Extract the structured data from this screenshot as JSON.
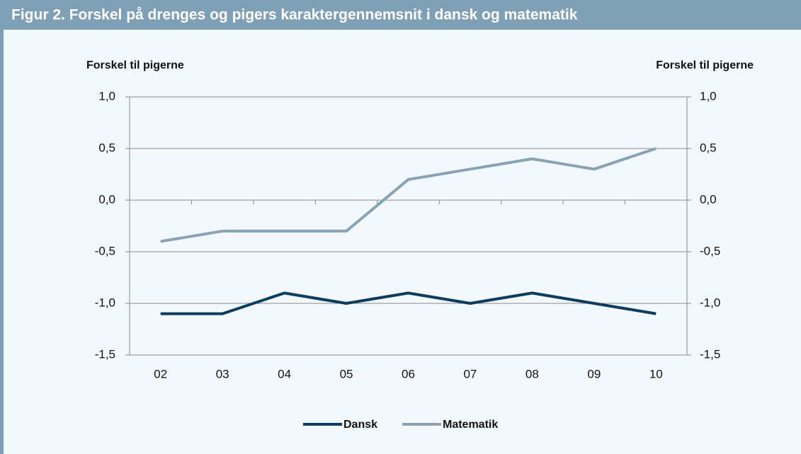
{
  "chart_data": {
    "type": "line",
    "title": "Figur 2. Forskel på drenges og pigers karaktergennemsnit i dansk og matematik",
    "y_label": "Forskel til pigerne",
    "y2_label": "Forskel til pigerne",
    "categories": [
      "02",
      "03",
      "04",
      "05",
      "06",
      "07",
      "08",
      "09",
      "10"
    ],
    "series": [
      {
        "name": "Dansk",
        "color": "#0b3d5e",
        "values": [
          -1.1,
          -1.1,
          -0.9,
          -1.0,
          -0.9,
          -1.0,
          -0.9,
          -1.0,
          -1.1
        ]
      },
      {
        "name": "Matematik",
        "color": "#87a3b6",
        "values": [
          -0.4,
          -0.3,
          -0.3,
          -0.3,
          0.2,
          0.3,
          0.4,
          0.3,
          0.5
        ]
      }
    ],
    "ylim": [
      -1.5,
      1.0
    ],
    "yticks": [
      {
        "value": -1.5,
        "label": "-1,5"
      },
      {
        "value": -1.0,
        "label": "-1,0"
      },
      {
        "value": -0.5,
        "label": "-0,5"
      },
      {
        "value": 0,
        "label": "0,0"
      },
      {
        "value": 0.5,
        "label": "0,5"
      },
      {
        "value": 1.0,
        "label": "1,0"
      }
    ],
    "y2lim": [
      -1.5,
      1.0
    ],
    "y2ticks": [
      {
        "value": -1.5,
        "label": "-1,5"
      },
      {
        "value": -1.0,
        "label": "-1,0"
      },
      {
        "value": -0.5,
        "label": "-0,5"
      },
      {
        "value": 0,
        "label": "0,0"
      },
      {
        "value": 0.5,
        "label": "0,5"
      },
      {
        "value": 1.0,
        "label": "1,0"
      }
    ],
    "grid": true,
    "legend": "bottom"
  }
}
